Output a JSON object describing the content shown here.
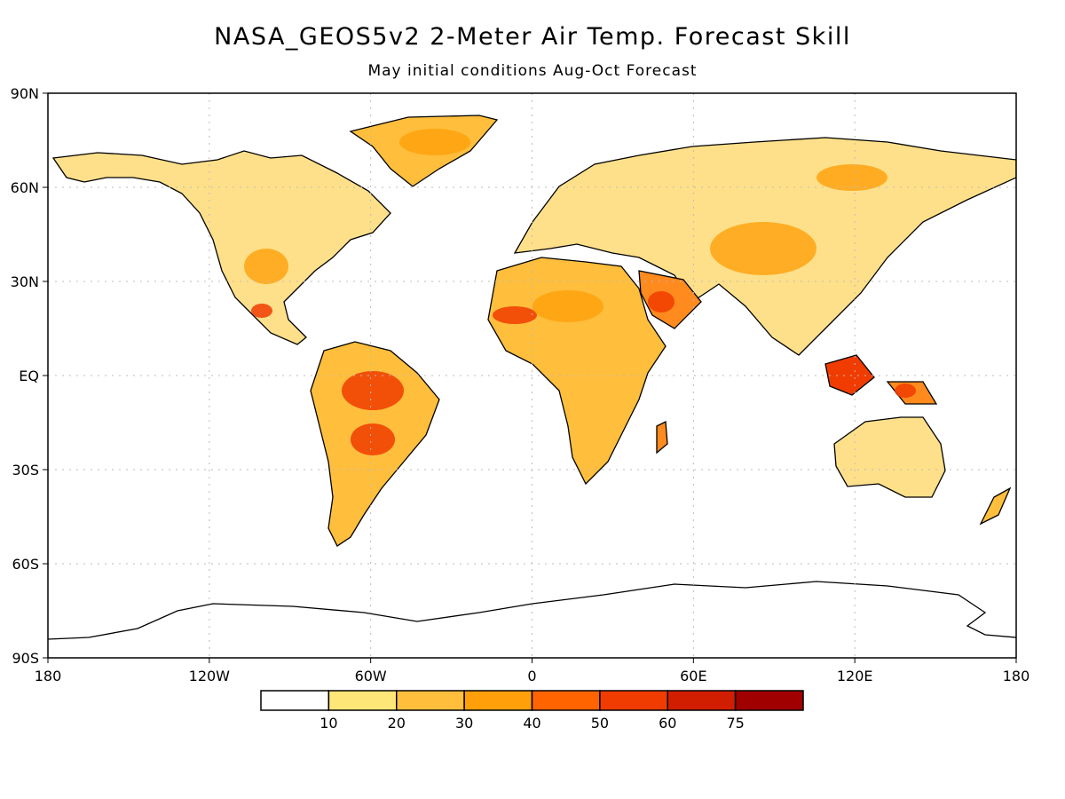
{
  "title": "NASA_GEOS5v2 2-Meter Air Temp. Forecast Skill",
  "subtitle": "May initial conditions  Aug-Oct Forecast",
  "lat_ticks": [
    {
      "label": "90N",
      "lat": 90
    },
    {
      "label": "60N",
      "lat": 60
    },
    {
      "label": "30N",
      "lat": 30
    },
    {
      "label": "EQ",
      "lat": 0
    },
    {
      "label": "30S",
      "lat": -30
    },
    {
      "label": "60S",
      "lat": -60
    },
    {
      "label": "90S",
      "lat": -90
    }
  ],
  "lon_ticks": [
    {
      "label": "180",
      "lon": -180
    },
    {
      "label": "120W",
      "lon": -120
    },
    {
      "label": "60W",
      "lon": -60
    },
    {
      "label": "0",
      "lon": 0
    },
    {
      "label": "60E",
      "lon": 60
    },
    {
      "label": "120E",
      "lon": 120
    },
    {
      "label": "180",
      "lon": 180
    }
  ],
  "colorbar": {
    "colors": [
      "#ffffff",
      "#ffe678",
      "#ffbe3c",
      "#ffa00a",
      "#ff6400",
      "#f03c00",
      "#d21e00",
      "#a00000"
    ],
    "labels": [
      "10",
      "20",
      "30",
      "40",
      "50",
      "60",
      "75"
    ]
  },
  "colors": {
    "land_low": "#ffe08a",
    "land_mid": "#ffbe3c",
    "land_high": "#ff8a1e",
    "land_peak": "#f03c00",
    "coast": "#000000",
    "grid": "#bbbbbb"
  }
}
